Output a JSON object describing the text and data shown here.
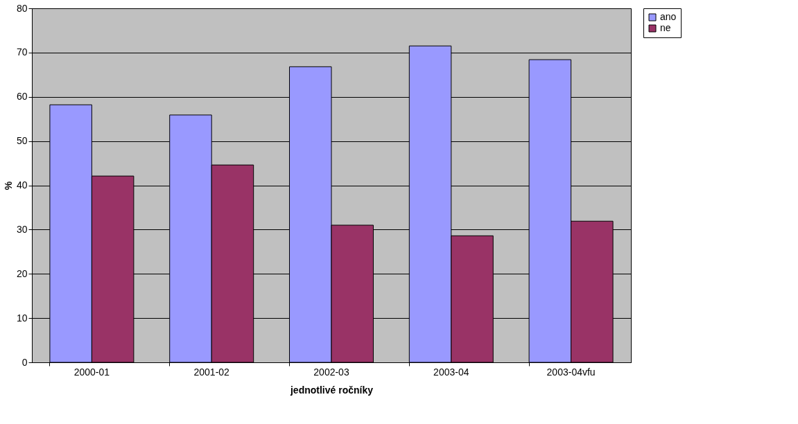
{
  "chart_data": {
    "type": "bar",
    "xlabel": "jednotlivé ročníky",
    "ylabel": "%",
    "categories": [
      "2000-01",
      "2001-02",
      "2002-03",
      "2003-04",
      "2003-04vfu"
    ],
    "series": [
      {
        "name": "ano",
        "color": "#9999ff",
        "values": [
          58.2,
          55.9,
          66.8,
          71.5,
          68.4
        ]
      },
      {
        "name": "ne",
        "color": "#993366",
        "values": [
          42.1,
          44.6,
          31.0,
          28.6,
          31.9
        ]
      }
    ],
    "ylim": [
      0,
      80
    ],
    "yticks": [
      0,
      10,
      20,
      30,
      40,
      50,
      60,
      70,
      80
    ],
    "grid": "y",
    "legend": "right"
  }
}
